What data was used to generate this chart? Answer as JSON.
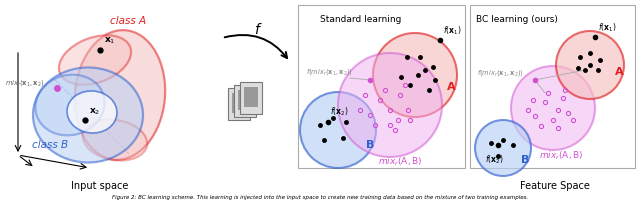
{
  "fig_width": 6.4,
  "fig_height": 2.04,
  "dpi": 100,
  "bg_color": "#ffffff",
  "class_A_color": "#e02020",
  "class_B_color": "#3060d0",
  "color_mix": "#d050d0",
  "color_mix_fill": "#f0b0f0",
  "color_A_fill": "#f5c0c0",
  "color_B_fill": "#b8d0f5",
  "input_space_label": "Input space",
  "feature_space_label": "Feature Space",
  "standard_title": "Standard learning",
  "bc_title": "BC learning (ours)",
  "caption": "Figure 2: BC learning scheme. This learning is injected into the input space to create new training data based on the mixture of two training examples."
}
